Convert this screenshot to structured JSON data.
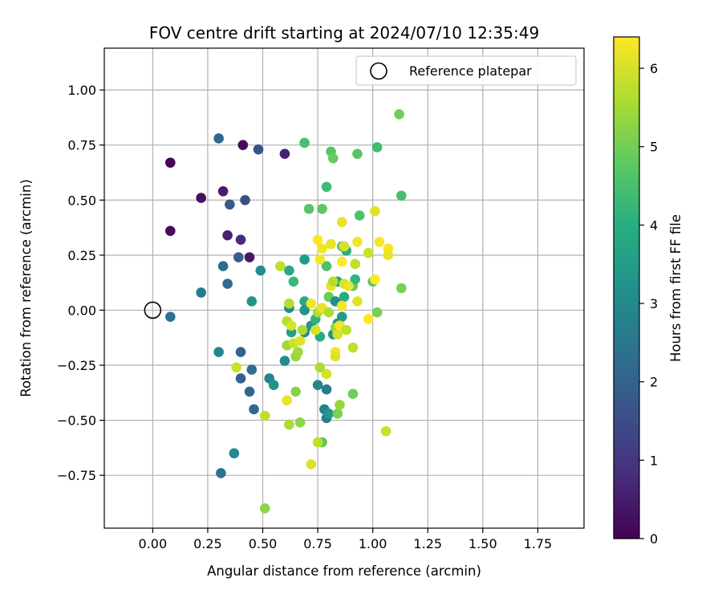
{
  "chart_data": {
    "type": "scatter",
    "title": "FOV centre drift starting at 2024/07/10 12:35:49",
    "xlabel": "Angular distance from reference (arcmin)",
    "ylabel": "Rotation from reference (arcmin)",
    "xlim": [
      -0.22,
      1.96
    ],
    "ylim": [
      -0.99,
      1.19
    ],
    "xticks": [
      "0.00",
      "0.25",
      "0.50",
      "0.75",
      "1.00",
      "1.25",
      "1.50",
      "1.75"
    ],
    "xtick_values": [
      0,
      0.25,
      0.5,
      0.75,
      1.0,
      1.25,
      1.5,
      1.75
    ],
    "yticks": [
      "−0.75",
      "−0.50",
      "−0.25",
      "0.00",
      "0.25",
      "0.50",
      "0.75",
      "1.00"
    ],
    "ytick_values": [
      -0.75,
      -0.5,
      -0.25,
      0,
      0.25,
      0.5,
      0.75,
      1.0
    ],
    "grid": true,
    "legend": {
      "placement": "top-right",
      "entries": [
        {
          "label": "Reference platepar",
          "marker": "open-circle"
        }
      ]
    },
    "reference_point": {
      "x": 0.0,
      "y": 0.0
    },
    "colorbar": {
      "label": "Hours from first FF file",
      "colormap": "viridis",
      "range": [
        0,
        6.4
      ],
      "ticks": [
        "0",
        "1",
        "2",
        "3",
        "4",
        "5",
        "6"
      ],
      "tick_values": [
        0,
        1,
        2,
        3,
        4,
        5,
        6
      ]
    },
    "points": [
      {
        "x": 0.08,
        "y": 0.67,
        "h": 0.1
      },
      {
        "x": 0.08,
        "y": 0.36,
        "h": 0.2
      },
      {
        "x": 0.22,
        "y": 0.51,
        "h": 0.3
      },
      {
        "x": 0.32,
        "y": 0.54,
        "h": 0.5
      },
      {
        "x": 0.34,
        "y": 0.34,
        "h": 0.6
      },
      {
        "x": 0.4,
        "y": 0.32,
        "h": 0.8
      },
      {
        "x": 0.41,
        "y": 0.75,
        "h": 0.2
      },
      {
        "x": 0.44,
        "y": 0.24,
        "h": 0.4
      },
      {
        "x": 0.6,
        "y": 0.71,
        "h": 0.6
      },
      {
        "x": 0.42,
        "y": 0.5,
        "h": 1.5
      },
      {
        "x": 0.48,
        "y": 0.73,
        "h": 1.6
      },
      {
        "x": 0.35,
        "y": 0.48,
        "h": 1.8
      },
      {
        "x": 0.39,
        "y": 0.24,
        "h": 1.9
      },
      {
        "x": 0.3,
        "y": 0.78,
        "h": 2.1
      },
      {
        "x": 0.34,
        "y": 0.12,
        "h": 2.2
      },
      {
        "x": 0.32,
        "y": 0.2,
        "h": 2.3
      },
      {
        "x": 0.22,
        "y": 0.08,
        "h": 2.6
      },
      {
        "x": 0.08,
        "y": -0.03,
        "h": 2.4
      },
      {
        "x": 0.3,
        "y": -0.19,
        "h": 2.9
      },
      {
        "x": 0.4,
        "y": -0.19,
        "h": 2.0
      },
      {
        "x": 0.4,
        "y": -0.31,
        "h": 2.0
      },
      {
        "x": 0.45,
        "y": -0.27,
        "h": 2.3
      },
      {
        "x": 0.44,
        "y": -0.37,
        "h": 2.1
      },
      {
        "x": 0.46,
        "y": -0.45,
        "h": 2.2
      },
      {
        "x": 0.31,
        "y": -0.74,
        "h": 2.4
      },
      {
        "x": 0.37,
        "y": -0.65,
        "h": 3.0
      },
      {
        "x": 0.45,
        "y": 0.04,
        "h": 3.3
      },
      {
        "x": 0.49,
        "y": 0.18,
        "h": 3.1
      },
      {
        "x": 0.53,
        "y": -0.31,
        "h": 2.9
      },
      {
        "x": 0.55,
        "y": -0.34,
        "h": 3.3
      },
      {
        "x": 0.6,
        "y": -0.23,
        "h": 3.1
      },
      {
        "x": 0.62,
        "y": 0.18,
        "h": 3.8
      },
      {
        "x": 0.64,
        "y": 0.13,
        "h": 4.3
      },
      {
        "x": 0.62,
        "y": 0.01,
        "h": 3.1
      },
      {
        "x": 0.63,
        "y": -0.1,
        "h": 3.6
      },
      {
        "x": 0.69,
        "y": 0.04,
        "h": 3.8
      },
      {
        "x": 0.69,
        "y": -0.1,
        "h": 3.0
      },
      {
        "x": 0.69,
        "y": 0.0,
        "h": 3.3
      },
      {
        "x": 0.69,
        "y": 0.23,
        "h": 3.5
      },
      {
        "x": 0.69,
        "y": 0.76,
        "h": 4.5
      },
      {
        "x": 0.71,
        "y": 0.46,
        "h": 4.7
      },
      {
        "x": 0.72,
        "y": -0.07,
        "h": 3.4
      },
      {
        "x": 0.74,
        "y": -0.04,
        "h": 4.1
      },
      {
        "x": 0.75,
        "y": -0.34,
        "h": 2.9
      },
      {
        "x": 0.76,
        "y": -0.12,
        "h": 3.9
      },
      {
        "x": 0.77,
        "y": 0.46,
        "h": 4.8
      },
      {
        "x": 0.78,
        "y": -0.45,
        "h": 2.8
      },
      {
        "x": 0.79,
        "y": -0.36,
        "h": 2.7
      },
      {
        "x": 0.79,
        "y": -0.49,
        "h": 2.6
      },
      {
        "x": 0.79,
        "y": 0.56,
        "h": 4.4
      },
      {
        "x": 0.8,
        "y": -0.47,
        "h": 3.4
      },
      {
        "x": 0.77,
        "y": -0.6,
        "h": 4.8
      },
      {
        "x": 0.81,
        "y": 0.72,
        "h": 4.7
      },
      {
        "x": 0.82,
        "y": 0.69,
        "h": 4.9
      },
      {
        "x": 0.79,
        "y": 0.2,
        "h": 4.6
      },
      {
        "x": 0.8,
        "y": 0.06,
        "h": 4.9
      },
      {
        "x": 0.82,
        "y": -0.11,
        "h": 3.3
      },
      {
        "x": 0.83,
        "y": 0.04,
        "h": 3.1
      },
      {
        "x": 0.84,
        "y": -0.06,
        "h": 3.4
      },
      {
        "x": 0.86,
        "y": -0.03,
        "h": 3.5
      },
      {
        "x": 0.84,
        "y": 0.13,
        "h": 3.7
      },
      {
        "x": 0.86,
        "y": 0.29,
        "h": 4.7
      },
      {
        "x": 0.87,
        "y": 0.06,
        "h": 3.9
      },
      {
        "x": 0.88,
        "y": 0.27,
        "h": 4.0
      },
      {
        "x": 0.91,
        "y": 0.11,
        "h": 4.9
      },
      {
        "x": 0.92,
        "y": 0.14,
        "h": 4.2
      },
      {
        "x": 0.93,
        "y": 0.71,
        "h": 4.7
      },
      {
        "x": 0.94,
        "y": 0.43,
        "h": 4.6
      },
      {
        "x": 1.02,
        "y": 0.74,
        "h": 4.4
      },
      {
        "x": 1.12,
        "y": 0.89,
        "h": 5.0
      },
      {
        "x": 1.13,
        "y": 0.52,
        "h": 4.5
      },
      {
        "x": 1.13,
        "y": 0.1,
        "h": 5.1
      },
      {
        "x": 1.0,
        "y": 0.13,
        "h": 4.8
      },
      {
        "x": 1.02,
        "y": -0.01,
        "h": 5.1
      },
      {
        "x": 0.91,
        "y": -0.38,
        "h": 5.0
      },
      {
        "x": 0.84,
        "y": -0.47,
        "h": 5.1
      },
      {
        "x": 0.85,
        "y": -0.43,
        "h": 5.4
      },
      {
        "x": 0.76,
        "y": -0.26,
        "h": 5.6
      },
      {
        "x": 0.79,
        "y": -0.29,
        "h": 6.0
      },
      {
        "x": 0.75,
        "y": -0.6,
        "h": 5.8
      },
      {
        "x": 0.72,
        "y": -0.7,
        "h": 6.1
      },
      {
        "x": 0.67,
        "y": -0.51,
        "h": 5.3
      },
      {
        "x": 0.65,
        "y": -0.37,
        "h": 5.2
      },
      {
        "x": 0.65,
        "y": -0.21,
        "h": 5.4
      },
      {
        "x": 0.66,
        "y": -0.19,
        "h": 5.5
      },
      {
        "x": 0.61,
        "y": -0.16,
        "h": 5.5
      },
      {
        "x": 0.62,
        "y": -0.52,
        "h": 5.6
      },
      {
        "x": 0.61,
        "y": -0.41,
        "h": 6.2
      },
      {
        "x": 0.51,
        "y": -0.48,
        "h": 5.8
      },
      {
        "x": 0.51,
        "y": -0.9,
        "h": 5.3
      },
      {
        "x": 0.38,
        "y": -0.26,
        "h": 5.9
      },
      {
        "x": 0.61,
        "y": -0.05,
        "h": 5.7
      },
      {
        "x": 0.62,
        "y": 0.03,
        "h": 5.7
      },
      {
        "x": 0.63,
        "y": -0.07,
        "h": 6.0
      },
      {
        "x": 0.64,
        "y": -0.15,
        "h": 5.9
      },
      {
        "x": 0.67,
        "y": -0.14,
        "h": 6.1
      },
      {
        "x": 0.68,
        "y": -0.09,
        "h": 5.6
      },
      {
        "x": 0.72,
        "y": 0.03,
        "h": 6.3
      },
      {
        "x": 0.74,
        "y": -0.09,
        "h": 6.0
      },
      {
        "x": 0.75,
        "y": -0.01,
        "h": 5.5
      },
      {
        "x": 0.76,
        "y": 0.0,
        "h": 5.8
      },
      {
        "x": 0.77,
        "y": 0.01,
        "h": 6.2
      },
      {
        "x": 0.8,
        "y": -0.01,
        "h": 5.6
      },
      {
        "x": 0.81,
        "y": 0.11,
        "h": 6.2
      },
      {
        "x": 0.82,
        "y": 0.13,
        "h": 5.7
      },
      {
        "x": 0.83,
        "y": -0.08,
        "h": 5.4
      },
      {
        "x": 0.83,
        "y": -0.19,
        "h": 6.3
      },
      {
        "x": 0.83,
        "y": -0.21,
        "h": 6.1
      },
      {
        "x": 0.84,
        "y": -0.11,
        "h": 6.0
      },
      {
        "x": 0.85,
        "y": -0.07,
        "h": 6.3
      },
      {
        "x": 0.86,
        "y": 0.02,
        "h": 6.3
      },
      {
        "x": 0.87,
        "y": 0.12,
        "h": 6.0
      },
      {
        "x": 0.88,
        "y": -0.09,
        "h": 5.8
      },
      {
        "x": 0.89,
        "y": 0.11,
        "h": 6.2
      },
      {
        "x": 0.91,
        "y": -0.17,
        "h": 5.8
      },
      {
        "x": 0.92,
        "y": 0.21,
        "h": 5.8
      },
      {
        "x": 0.93,
        "y": 0.04,
        "h": 6.1
      },
      {
        "x": 0.93,
        "y": 0.31,
        "h": 6.3
      },
      {
        "x": 0.98,
        "y": 0.26,
        "h": 5.9
      },
      {
        "x": 0.98,
        "y": -0.04,
        "h": 6.4
      },
      {
        "x": 1.01,
        "y": 0.45,
        "h": 6.1
      },
      {
        "x": 1.01,
        "y": 0.14,
        "h": 6.4
      },
      {
        "x": 1.03,
        "y": 0.31,
        "h": 6.3
      },
      {
        "x": 1.07,
        "y": 0.28,
        "h": 6.3
      },
      {
        "x": 1.07,
        "y": 0.25,
        "h": 6.2
      },
      {
        "x": 1.06,
        "y": -0.55,
        "h": 5.9
      },
      {
        "x": 0.75,
        "y": 0.32,
        "h": 6.4
      },
      {
        "x": 0.76,
        "y": 0.23,
        "h": 6.3
      },
      {
        "x": 0.77,
        "y": 0.28,
        "h": 6.3
      },
      {
        "x": 0.81,
        "y": 0.3,
        "h": 6.2
      },
      {
        "x": 0.86,
        "y": 0.22,
        "h": 6.4
      },
      {
        "x": 0.86,
        "y": 0.4,
        "h": 6.2
      },
      {
        "x": 0.87,
        "y": 0.29,
        "h": 6.0
      },
      {
        "x": 0.58,
        "y": 0.2,
        "h": 5.8
      }
    ]
  }
}
